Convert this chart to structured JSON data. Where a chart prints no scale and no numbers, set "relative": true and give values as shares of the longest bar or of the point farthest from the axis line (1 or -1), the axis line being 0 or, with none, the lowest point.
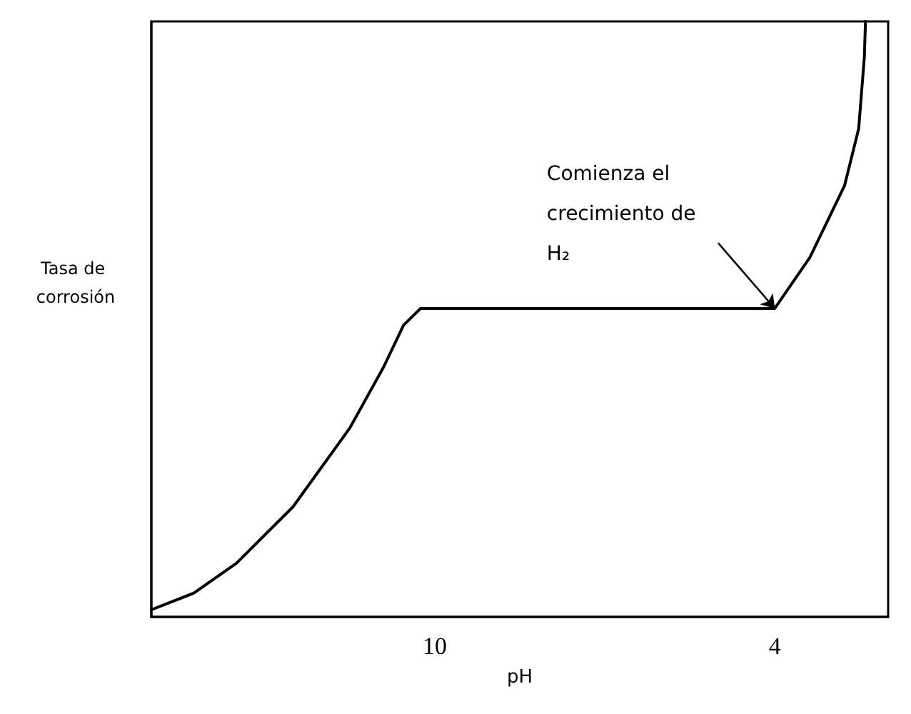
{
  "chart_data": {
    "type": "line",
    "relative": true,
    "xlabel": "pH",
    "ylabel": "Tasa de corrosión",
    "xlim": [
      15,
      2
    ],
    "xticks": [
      10,
      4
    ],
    "grid": false,
    "marker": "none",
    "line_style": "solid",
    "series": [
      {
        "color": "#000000",
        "x": [
          15,
          14.25,
          13.5,
          12.5,
          11.5,
          10.9,
          10.55,
          10.25,
          4,
          3.38,
          2.77,
          2.52,
          2.42,
          2.4
        ],
        "values": [
          0.012,
          0.04,
          0.09,
          0.185,
          0.317,
          0.42,
          0.49,
          0.518,
          0.518,
          0.604,
          0.724,
          0.82,
          0.94,
          1.0
        ]
      }
    ],
    "annotations": [
      {
        "text": "Comienza el crecimiento de H₂",
        "x": 4,
        "y": 0.518
      }
    ]
  }
}
